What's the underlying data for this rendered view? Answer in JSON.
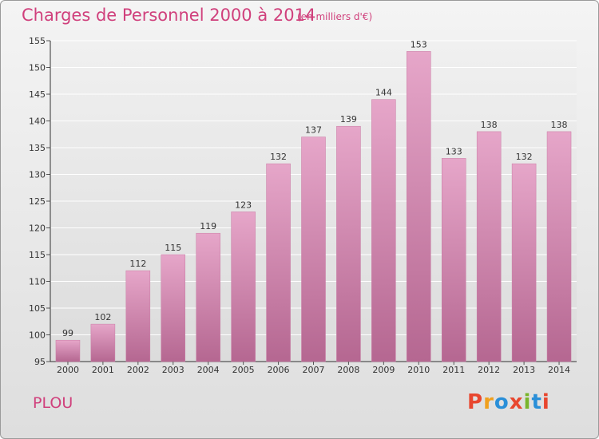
{
  "header": {
    "title": "Charges de Personnel 2000 à 2014",
    "subtitle": "(en milliers d'€)"
  },
  "footer": {
    "commune": "PLOU",
    "logo": "Proxiti",
    "logo_colors": [
      "#e8472f",
      "#f0a01e",
      "#2a8fd8",
      "#e8472f",
      "#7ab52d",
      "#2a8fd8",
      "#e8472f"
    ]
  },
  "chart_data": {
    "type": "bar",
    "categories": [
      "2000",
      "2001",
      "2002",
      "2003",
      "2004",
      "2005",
      "2006",
      "2007",
      "2008",
      "2009",
      "2010",
      "2011",
      "2012",
      "2013",
      "2014"
    ],
    "values": [
      99,
      102,
      112,
      115,
      119,
      123,
      132,
      137,
      139,
      144,
      153,
      133,
      138,
      132,
      138
    ],
    "title": "Charges de Personnel 2000 à 2014",
    "subtitle": "(en milliers d'€)",
    "xlabel": "",
    "ylabel": "",
    "ylim": [
      95,
      155
    ],
    "yticks": [
      95,
      100,
      105,
      110,
      115,
      120,
      125,
      130,
      135,
      140,
      145,
      150,
      155
    ],
    "grid": true,
    "bar_color": "#d583ae",
    "data_labels": true
  }
}
